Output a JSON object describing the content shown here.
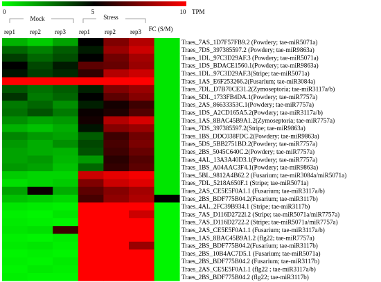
{
  "chart_data": {
    "type": "heatmap",
    "colorbar": {
      "min": 0,
      "mid": 5,
      "max": 10,
      "tick_labels": [
        "0",
        "5",
        "10"
      ],
      "unit": "TPM",
      "colors": {
        "low": "#00ff00",
        "mid": "#000000",
        "high": "#ff0000"
      }
    },
    "groups": [
      {
        "label": "Mock",
        "columns": [
          0,
          1,
          2
        ]
      },
      {
        "label": "Stress",
        "columns": [
          3,
          4,
          5
        ]
      }
    ],
    "columns": [
      "rep1",
      "rep2",
      "rep3",
      "rep1",
      "rep2",
      "rep3",
      "FC (S/M)"
    ],
    "rows": [
      {
        "label": "Traes_7AS_1D7F57FB9.2 (Powdery; tae-miR5071a)",
        "values": [
          1.5,
          1.0,
          1.8,
          5.0,
          7.5,
          8.5,
          0.5
        ]
      },
      {
        "label": "Traes_7DS_397385597.2 (Powdery; tae-miR9863a)",
        "values": [
          3.0,
          2.5,
          3.2,
          4.5,
          8.0,
          9.0,
          0.5
        ]
      },
      {
        "label": "Traes_1DL_97C3D29AF.3 (Powdery; tae-miR5071a)",
        "values": [
          3.8,
          3.0,
          3.5,
          5.0,
          7.2,
          8.2,
          0.5
        ]
      },
      {
        "label": "Traes_1DS_BDACE1560.1(Powdery; tae-miR9863a)",
        "values": [
          5.0,
          3.6,
          4.5,
          6.8,
          7.0,
          8.0,
          0.5
        ]
      },
      {
        "label": "Traes_1DL_97C3D29AF.3(Stripe; tae-miR5071a)",
        "values": [
          4.6,
          3.8,
          4.2,
          6.0,
          8.5,
          9.0,
          0.5
        ]
      },
      {
        "label": "Traes_1AS_E6F253266.2(Fusarium; tae-miR3084a)",
        "values": [
          10,
          10,
          10,
          10,
          10,
          10,
          0.5
        ]
      },
      {
        "label": "Traes_7DL_D7B70CE31.2(Zymoseptoria; tae-miR3117a/b)",
        "values": [
          3.3,
          2.8,
          3.2,
          4.4,
          7.5,
          8.0,
          0.5
        ]
      },
      {
        "label": "Traes_5DL_1733FB4DA.1(Powdery; tae-miR7757a)",
        "values": [
          4.0,
          2.6,
          3.0,
          5.0,
          6.8,
          7.6,
          0.5
        ]
      },
      {
        "label": "Traes_2AS_86633353C.1(Powdery; tae-miR7757a)",
        "values": [
          2.6,
          3.0,
          2.2,
          4.4,
          5.4,
          6.2,
          0.5
        ]
      },
      {
        "label": "Traes_1DS_A2CD165A5.2(Powdery; tae-miR3117a/b)",
        "values": [
          2.8,
          3.4,
          2.6,
          5.2,
          5.6,
          6.6,
          0.5
        ]
      },
      {
        "label": "Traes_1AS_8BAC45B9A1.2(Zymoseptoria; tae-miR7757a)",
        "values": [
          2.2,
          1.8,
          2.0,
          5.4,
          8.5,
          9.2,
          0.5
        ]
      },
      {
        "label": "Traes_7DS_397385597.2(Stripe; tae-miR9863a)",
        "values": [
          1.5,
          1.2,
          1.6,
          4.6,
          7.6,
          8.0,
          0.5
        ]
      },
      {
        "label": "Traes_1BS_DDC038FDC.2(Powdery; tae-miR9863a)",
        "values": [
          2.4,
          2.0,
          1.8,
          3.2,
          6.2,
          7.2,
          0.5
        ]
      },
      {
        "label": "Traes_5DS_5BB2751BD.2(Powdery; tae-miR7757a)",
        "values": [
          2.0,
          1.6,
          2.2,
          3.6,
          6.4,
          7.4,
          0.5
        ]
      },
      {
        "label": "Traes_2BS_5045C640C.2(Powdery; tae-miR7757a)",
        "values": [
          1.8,
          1.6,
          1.5,
          3.4,
          6.2,
          7.0,
          0.5
        ]
      },
      {
        "label": "Traes_4AL_13A3A40D3.1(Powdery; tae-miR7757a)",
        "values": [
          1.8,
          2.0,
          1.4,
          2.0,
          5.8,
          6.6,
          0.5
        ]
      },
      {
        "label": "Traes_1BS_A04AAC3F4.1(Powdery; tae-miR9863a)",
        "values": [
          2.0,
          1.8,
          1.2,
          3.0,
          6.0,
          6.8,
          0.5
        ]
      },
      {
        "label": "Traes_5BL_9812A4B62.2 (Fusarium; tae-miR3084a/miR5071a)",
        "values": [
          1.0,
          0.8,
          0.8,
          9.0,
          9.5,
          9.8,
          0.5
        ]
      },
      {
        "label": "Traes_7DL_5218A650F.1 (Stripe; tae-miR5071a)",
        "values": [
          0.6,
          0.8,
          1.0,
          7.5,
          9.0,
          9.4,
          0.5
        ]
      },
      {
        "label": "Traes_2AS_CE5E5F0A1.1 (Fusarium; tae-miR3117a/b)",
        "values": [
          1.8,
          5.2,
          1.6,
          6.8,
          7.6,
          8.2,
          0.5
        ]
      },
      {
        "label": "Traes_2BS_BDF775B04.2(Fusarium; tae-miR3117b)",
        "values": [
          1.2,
          1.0,
          0.8,
          6.4,
          7.8,
          8.4,
          5.0
        ]
      },
      {
        "label": "Traes_4AL_2FC39B934.1 (Stripe; tae-miR3117b)",
        "values": [
          0.5,
          0.4,
          0.3,
          10,
          10,
          10,
          0.2
        ]
      },
      {
        "label": "Traes_7AS_D116D2722l.2 (Stripe; tae-miR5071a/miR7757a)",
        "values": [
          0.3,
          0.2,
          0.5,
          10,
          10,
          9.0,
          0.2
        ]
      },
      {
        "label": "Traes_7AS_D116D2722.2 (Stripe; tae-miR5071a/miR7757a)",
        "values": [
          0.4,
          0.3,
          0.2,
          10,
          10,
          10,
          0.2
        ]
      },
      {
        "label": "Traes_2AS_CE5E5F0A1.1 (Fusarium; tae-miR3117a/b)",
        "values": [
          0.5,
          0.6,
          6.2,
          10,
          10,
          10,
          0.2
        ]
      },
      {
        "label": "Traes_1AS_8BAC45B9A1.2 (flg22; tae-miR7757a)",
        "values": [
          0.3,
          0.2,
          0.4,
          10,
          10,
          10,
          0.2
        ]
      },
      {
        "label": "Traes_2BS_BDF775B04.2(Fusarium; tae-miR3117b)",
        "values": [
          0.4,
          0.5,
          0.3,
          10,
          10,
          8.0,
          0.2
        ]
      },
      {
        "label": "Traes_2BS_10B4AC7D5.1 (Fusarium; tae-miR5071a)",
        "values": [
          0.2,
          0.3,
          0.2,
          10,
          10,
          10,
          0.2
        ]
      },
      {
        "label": "Traes_2BS_BDF775B04.2 (Fusarium; tae-miR3117b)",
        "values": [
          0.3,
          0.2,
          0.4,
          10,
          10,
          10,
          0.2
        ]
      },
      {
        "label": "Traes_2AS_CE5E5F0A1.1 (flg22 ; tae-miR3117a/b)",
        "values": [
          0.2,
          0.4,
          0.3,
          10,
          10,
          10,
          0.2
        ]
      },
      {
        "label": "Traes_2BS_BDF775B04.2 (flg22; tae-miR3117b)",
        "values": [
          0.3,
          0.2,
          0.2,
          10,
          10,
          10,
          0.2
        ]
      }
    ]
  }
}
